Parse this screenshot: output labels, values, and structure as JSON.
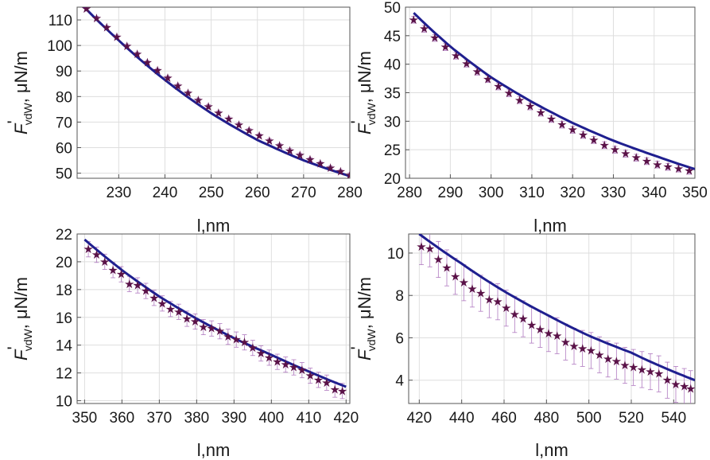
{
  "colors": {
    "fit": "#1f1f8f",
    "marker": "#5a1248",
    "errorbar": "#b07ac0",
    "grid": "#dedede"
  },
  "marker_glyph": "★",
  "chart_data": [
    {
      "type": "scatter",
      "xlabel": "l,nm",
      "ylabel": {
        "main": "F",
        "prime": "'",
        "sub": "vdW",
        "rest": ", μN/m"
      },
      "xlim": [
        221,
        280
      ],
      "ylim": [
        48,
        115
      ],
      "xticks": [
        230,
        240,
        250,
        260,
        270,
        280
      ],
      "yticks": [
        50,
        60,
        70,
        80,
        90,
        100,
        110
      ],
      "grid": true,
      "fit": {
        "x": [
          222,
          230,
          240,
          250,
          260,
          270,
          280
        ],
        "y": [
          116,
          102,
          86.5,
          73.5,
          63,
          55,
          48.8
        ]
      },
      "x": [
        223,
        225.2,
        227.4,
        229.6,
        231.8,
        234,
        236.2,
        238.4,
        240.6,
        242.8,
        245,
        247.2,
        249.4,
        251.6,
        253.8,
        256,
        258.2,
        260.4,
        262.6,
        264.8,
        267,
        269.2,
        271.4,
        273.6,
        275.8,
        278,
        280
      ],
      "y": [
        114.3,
        110.6,
        107,
        103.3,
        99.8,
        96.6,
        93.3,
        90.2,
        87.2,
        84.2,
        81.3,
        78.6,
        76,
        73.5,
        71.2,
        68.9,
        66.7,
        64.6,
        62.6,
        60.7,
        58.8,
        57.1,
        55.3,
        53.7,
        52.1,
        50.6,
        49.3
      ],
      "err": 0.8
    },
    {
      "type": "scatter",
      "xlabel": "l,nm",
      "ylabel": {
        "main": "F",
        "prime": "'",
        "sub": "vdW",
        "rest": ", μN/m"
      },
      "xlim": [
        279,
        350
      ],
      "ylim": [
        20,
        50
      ],
      "xticks": [
        280,
        290,
        300,
        310,
        320,
        330,
        340,
        350
      ],
      "yticks": [
        20,
        25,
        30,
        35,
        40,
        45,
        50
      ],
      "grid": true,
      "fit": {
        "x": [
          281,
          290,
          300,
          310,
          320,
          330,
          340,
          350
        ],
        "y": [
          49,
          43.1,
          37.7,
          33.4,
          29.7,
          26.6,
          24,
          21.6
        ]
      },
      "x": [
        281,
        283.6,
        286.2,
        288.8,
        291.4,
        294,
        296.6,
        299.2,
        301.8,
        304.4,
        307,
        309.6,
        312.2,
        314.8,
        317.4,
        320,
        322.6,
        325.2,
        327.8,
        330.4,
        333,
        335.6,
        338.2,
        340.8,
        343.4,
        346,
        348.6
      ],
      "y": [
        47.8,
        46.2,
        44.6,
        43,
        41.5,
        40.1,
        38.7,
        37.4,
        36.1,
        34.9,
        33.7,
        32.6,
        31.5,
        30.4,
        29.4,
        28.5,
        27.6,
        26.7,
        25.8,
        25,
        24.3,
        23.6,
        23,
        22.4,
        22,
        21.7,
        21.3
      ],
      "err": 0.6
    },
    {
      "type": "scatter",
      "xlabel": "l,nm",
      "ylabel": {
        "main": "F",
        "prime": "'",
        "sub": "vdW",
        "rest": ", μN/m"
      },
      "xlim": [
        348,
        421
      ],
      "ylim": [
        9.8,
        22
      ],
      "xticks": [
        350,
        360,
        370,
        380,
        390,
        400,
        410,
        420
      ],
      "yticks": [
        10,
        12,
        14,
        16,
        18,
        20,
        22
      ],
      "grid": true,
      "fit": {
        "x": [
          350,
          360,
          370,
          380,
          390,
          400,
          410,
          420
        ],
        "y": [
          21.6,
          19.4,
          17.5,
          15.9,
          14.5,
          13.3,
          12.1,
          11
        ]
      },
      "x": [
        351,
        353.2,
        355.4,
        357.6,
        359.8,
        362,
        364.2,
        366.4,
        368.6,
        370.8,
        373,
        375.2,
        377.4,
        379.6,
        381.8,
        384,
        386.2,
        388.4,
        390.6,
        392.8,
        395,
        397.2,
        399.4,
        401.6,
        403.8,
        406,
        408.2,
        410.4,
        412.6,
        414.8,
        417,
        419
      ],
      "y": [
        20.9,
        20.5,
        20,
        19.4,
        19.1,
        18.4,
        18.3,
        17.9,
        17.4,
        17,
        16.6,
        16.4,
        15.9,
        15.7,
        15.3,
        15.2,
        15,
        14.6,
        14.4,
        14.2,
        13.8,
        13.4,
        13.1,
        12.8,
        12.6,
        12.4,
        12.2,
        11.8,
        11.5,
        11.3,
        10.8,
        10.7
      ],
      "err": 0.55
    },
    {
      "type": "scatter",
      "xlabel": "l,nm",
      "ylabel": {
        "main": "F",
        "prime": "'",
        "sub": "vdW",
        "rest": ", μN/m"
      },
      "xlim": [
        415,
        550
      ],
      "ylim": [
        2.9,
        10.9
      ],
      "xticks": [
        420,
        440,
        460,
        480,
        500,
        520,
        540
      ],
      "yticks": [
        4,
        6,
        8,
        10
      ],
      "grid": true,
      "fit": {
        "x": [
          420,
          440,
          460,
          480,
          500,
          520,
          540,
          550
        ],
        "y": [
          10.9,
          9.5,
          8.2,
          7.1,
          6.1,
          5.3,
          4.4,
          4
        ]
      },
      "x": [
        421,
        425,
        429,
        433,
        437,
        441,
        445,
        449,
        453,
        457,
        461,
        465,
        469,
        473,
        477,
        481,
        485,
        489,
        493,
        497,
        501,
        505,
        509,
        513,
        517,
        521,
        525,
        529,
        533,
        537,
        541,
        545,
        548
      ],
      "y": [
        10.3,
        10.2,
        9.7,
        9.3,
        8.9,
        8.6,
        8.3,
        8.1,
        7.8,
        7.7,
        7.4,
        7.1,
        6.9,
        6.6,
        6.4,
        6.2,
        6.1,
        5.8,
        5.6,
        5.5,
        5.4,
        5.2,
        5,
        4.9,
        4.7,
        4.6,
        4.5,
        4.4,
        4.3,
        4,
        3.8,
        3.7,
        3.6
      ],
      "err": 0.85
    }
  ]
}
